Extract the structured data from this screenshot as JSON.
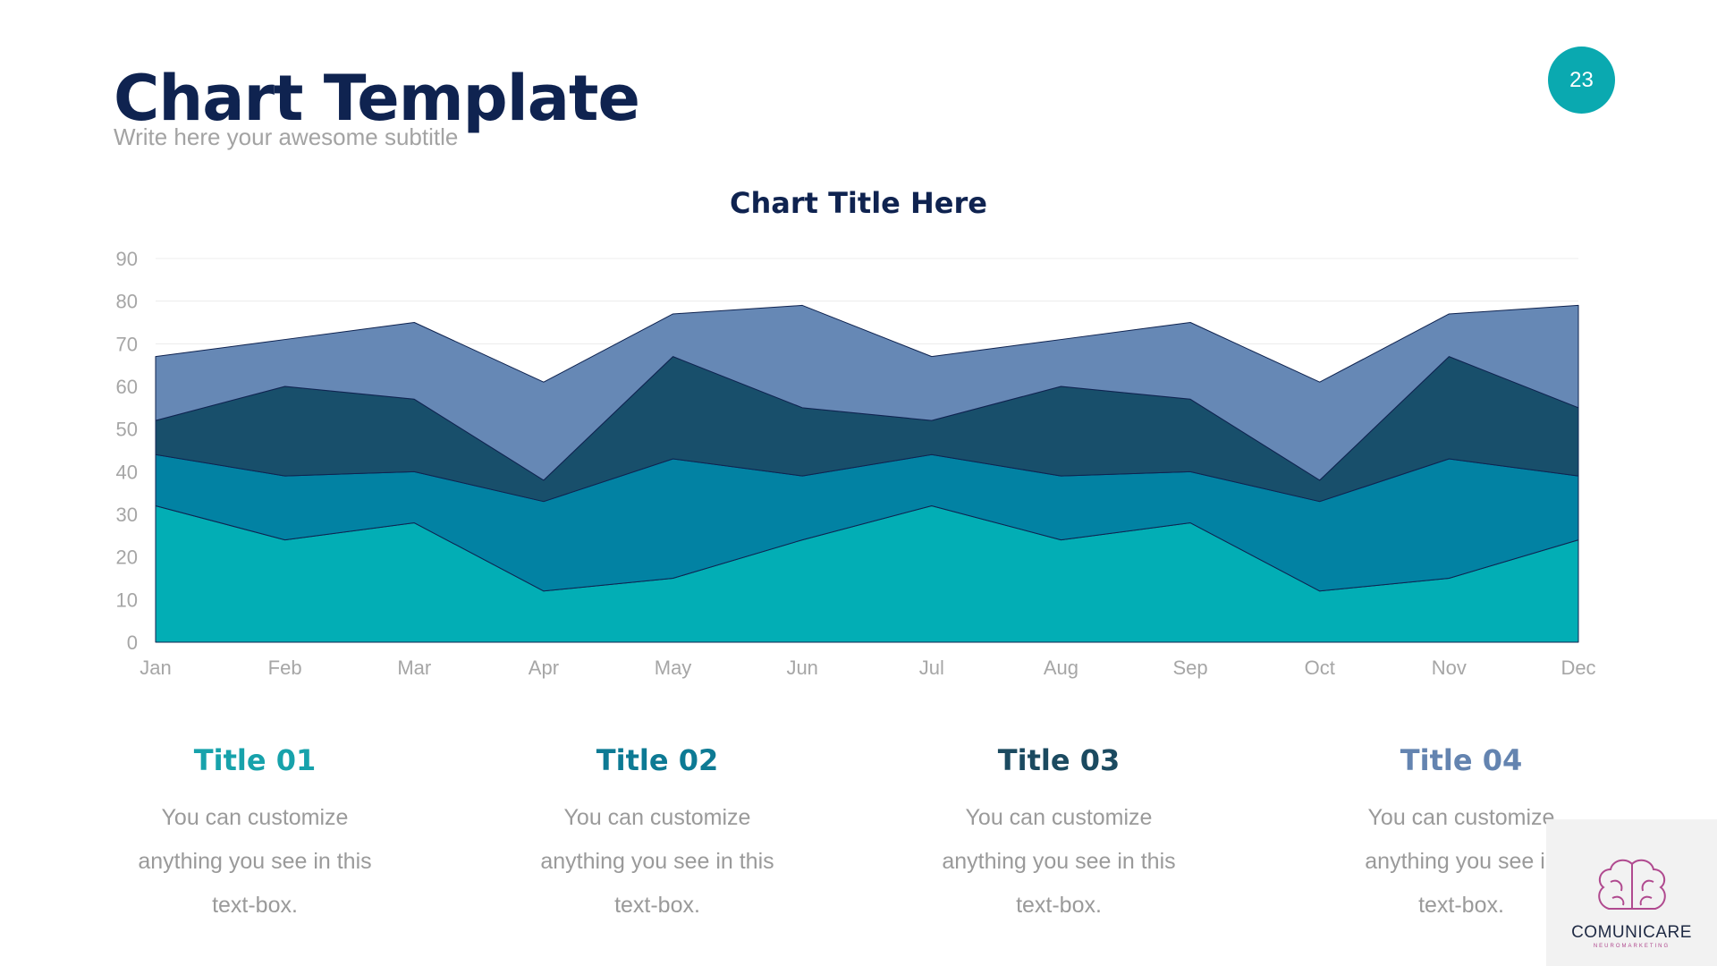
{
  "header": {
    "title": "Chart Template",
    "subtitle": "Write here your awesome subtitle",
    "page_number": "23"
  },
  "chart_data": {
    "type": "area",
    "stacked": true,
    "title": "Chart Title Here",
    "categories": [
      "Jan",
      "Feb",
      "Mar",
      "Apr",
      "May",
      "Jun",
      "Jul",
      "Aug",
      "Sep",
      "Oct",
      "Nov",
      "Dec"
    ],
    "series": [
      {
        "values": [
          32,
          24,
          28,
          12,
          15,
          24,
          32,
          24,
          28,
          12,
          15,
          24
        ],
        "color": "#02aeb5"
      },
      {
        "values": [
          12,
          15,
          12,
          21,
          28,
          15,
          12,
          15,
          12,
          21,
          28,
          15
        ],
        "color": "#0282a3"
      },
      {
        "values": [
          8,
          21,
          17,
          5,
          24,
          16,
          8,
          21,
          17,
          5,
          24,
          16
        ],
        "color": "#184f6b"
      },
      {
        "values": [
          15,
          11,
          18,
          23,
          10,
          24,
          15,
          11,
          18,
          23,
          10,
          24
        ],
        "color": "#6688b5"
      }
    ],
    "ylim": [
      0,
      90
    ],
    "yticks": [
      "0",
      "10",
      "20",
      "30",
      "40",
      "50",
      "60",
      "70",
      "80",
      "90"
    ],
    "grid": true
  },
  "columns": [
    {
      "title": "Title 01",
      "color": "#17a2ab",
      "lines": [
        "You can customize",
        "anything you see in this",
        "text-box."
      ]
    },
    {
      "title": "Title 02",
      "color": "#0d7a94",
      "lines": [
        "You can customize",
        "anything you see in this",
        "text-box."
      ]
    },
    {
      "title": "Title 03",
      "color": "#1b4a60",
      "lines": [
        "You can customize",
        "anything you see in this",
        "text-box."
      ]
    },
    {
      "title": "Title 04",
      "color": "#6484b0",
      "lines": [
        "You can customize",
        "anything you see in",
        "text-box."
      ]
    }
  ],
  "logo": {
    "text": "COMUNICARE",
    "tagline": "NEUROMARKETING",
    "icon": "brain-icon"
  }
}
